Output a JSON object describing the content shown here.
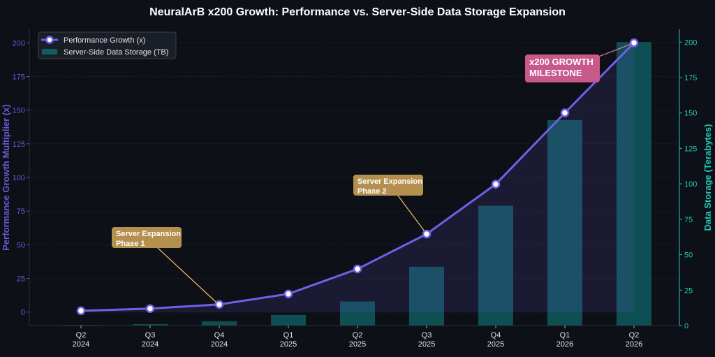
{
  "chart_data": {
    "type": "bar+line",
    "title": "NeuralArB x200 Growth: Performance vs. Server-Side Data Storage Expansion",
    "categories": [
      [
        "Q2",
        "2024"
      ],
      [
        "Q3",
        "2024"
      ],
      [
        "Q4",
        "2024"
      ],
      [
        "Q1",
        "2025"
      ],
      [
        "Q2",
        "2025"
      ],
      [
        "Q3",
        "2025"
      ],
      [
        "Q4",
        "2025"
      ],
      [
        "Q1",
        "2026"
      ],
      [
        "Q2",
        "2026"
      ]
    ],
    "series": [
      {
        "name": "Performance Growth (x)",
        "type": "line",
        "axis": "left",
        "color": "#7060e8",
        "values": [
          1,
          2.6,
          5.7,
          13.5,
          32,
          58,
          95,
          148,
          200
        ]
      },
      {
        "name": "Server-Side Data Storage (TB)",
        "type": "bar",
        "axis": "right",
        "color": "#0e6b6e",
        "values": [
          0.5,
          1,
          3,
          7.5,
          17,
          41.5,
          84.5,
          145,
          200
        ]
      }
    ],
    "ylabel_left": "Performance Growth Multiplier (x)",
    "ylabel_right": "Data Storage (Terabytes)",
    "ylim_left": [
      -10,
      210
    ],
    "ylim_right": [
      0,
      209
    ],
    "yticks_left": [
      0,
      25,
      50,
      75,
      100,
      125,
      150,
      175,
      200
    ],
    "yticks_right": [
      0,
      25,
      50,
      75,
      100,
      125,
      150,
      175,
      200
    ],
    "grid": true,
    "legend_placement": "top-left",
    "annotations": [
      {
        "text": [
          "Server Expansion",
          "Phase 1"
        ],
        "target_index": 2,
        "color": "#b58f4e"
      },
      {
        "text": [
          "Server Expansion",
          "Phase 2"
        ],
        "target_index": 5,
        "color": "#b58f4e"
      },
      {
        "text": [
          "x200 GROWTH",
          "MILESTONE"
        ],
        "target_index": 8,
        "color": "#c9598a"
      }
    ],
    "colors": {
      "left_axis": "#6a5ad6",
      "right_axis": "#20c9b8",
      "background": "#0d1017"
    }
  }
}
